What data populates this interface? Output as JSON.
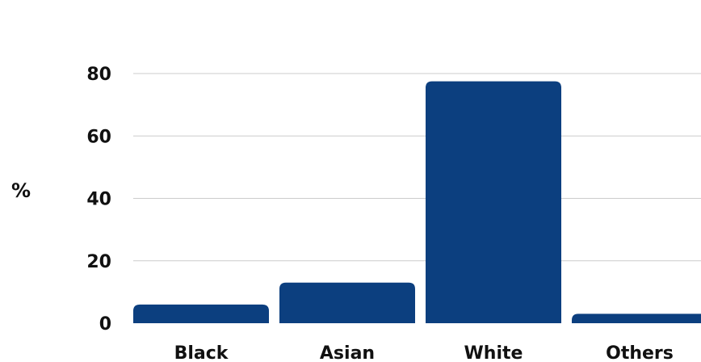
{
  "chart_data": {
    "type": "bar",
    "title": "",
    "xlabel": "",
    "ylabel": "%",
    "categories": [
      "Black",
      "Asian",
      "White",
      "Others"
    ],
    "values": [
      6,
      13,
      77.5,
      3
    ],
    "ylim": [
      0,
      80
    ],
    "yticks": [
      0,
      20,
      40,
      60,
      80
    ],
    "grid": true,
    "legend": "none",
    "bar_color": "#0c3f7f"
  }
}
